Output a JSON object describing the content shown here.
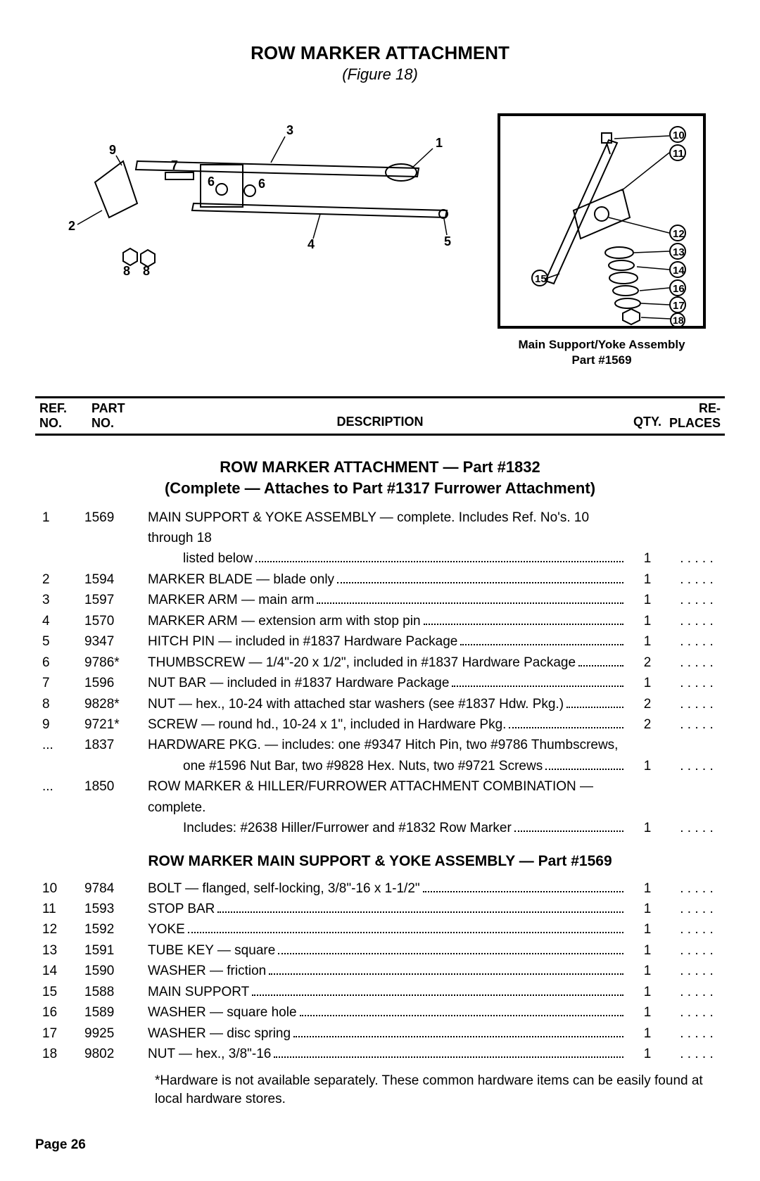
{
  "page": {
    "title": "ROW MARKER ATTACHMENT",
    "figure": "(Figure 18)",
    "left_diagram_labels": [
      "1",
      "2",
      "3",
      "4",
      "5",
      "6",
      "7",
      "8",
      "9"
    ],
    "right_diagram_labels": [
      "10",
      "11",
      "12",
      "13",
      "14",
      "15",
      "16",
      "17",
      "18"
    ],
    "right_caption_l1": "Main Support/Yoke Assembly",
    "right_caption_l2": "Part #1569",
    "table_headers": {
      "ref": "REF.\nNO.",
      "part": "PART\nNO.",
      "desc": "DESCRIPTION",
      "qty": "QTY.",
      "rep": "RE-\nPLACES"
    },
    "section1_title_l1": "ROW MARKER ATTACHMENT — Part #1832",
    "section1_title_l2": "(Complete — Attaches to Part #1317 Furrower Attachment)",
    "section2_title": "ROW MARKER MAIN SUPPORT & YOKE ASSEMBLY — Part #1569",
    "rows1": [
      {
        "ref": "1",
        "part": "1569",
        "desc": "MAIN SUPPORT & YOKE ASSEMBLY — complete. Includes Ref. No's. 10 through 18",
        "cont": "listed below",
        "qty": "1",
        "rep": ". . . . ."
      },
      {
        "ref": "2",
        "part": "1594",
        "desc": "MARKER BLADE — blade only",
        "qty": "1",
        "rep": ". . . . ."
      },
      {
        "ref": "3",
        "part": "1597",
        "desc": "MARKER ARM — main arm",
        "qty": "1",
        "rep": ". . . . ."
      },
      {
        "ref": "4",
        "part": "1570",
        "desc": "MARKER ARM — extension arm with stop pin",
        "qty": "1",
        "rep": ". . . . ."
      },
      {
        "ref": "5",
        "part": "9347",
        "desc": "HITCH PIN — included in #1837 Hardware Package",
        "qty": "1",
        "rep": ". . . . ."
      },
      {
        "ref": "6",
        "part": "9786*",
        "desc": "THUMBSCREW — 1/4\"-20 x 1/2\", included in #1837 Hardware Package",
        "qty": "2",
        "rep": ". . . . ."
      },
      {
        "ref": "7",
        "part": "1596",
        "desc": "NUT BAR — included in #1837 Hardware Package",
        "qty": "1",
        "rep": ". . . . ."
      },
      {
        "ref": "8",
        "part": "9828*",
        "desc": "NUT — hex., 10-24 with attached star washers (see #1837 Hdw. Pkg.)",
        "qty": "2",
        "rep": ". . . . ."
      },
      {
        "ref": "9",
        "part": "9721*",
        "desc": "SCREW — round hd., 10-24 x 1\", included in Hardware Pkg.",
        "qty": "2",
        "rep": ". . . . ."
      },
      {
        "ref": "...",
        "part": "1837",
        "desc": "HARDWARE PKG. — includes: one #9347 Hitch Pin, two #9786 Thumbscrews,",
        "cont": "one #1596 Nut Bar, two #9828 Hex. Nuts, two #9721 Screws",
        "qty": "1",
        "rep": ". . . . ."
      },
      {
        "ref": "...",
        "part": "1850",
        "desc": "ROW MARKER & HILLER/FURROWER ATTACHMENT COMBINATION — complete.",
        "cont": "Includes: #2638 Hiller/Furrower and #1832 Row Marker",
        "qty": "1",
        "rep": ". . . . ."
      }
    ],
    "rows2": [
      {
        "ref": "10",
        "part": "9784",
        "desc": "BOLT — flanged, self-locking, 3/8\"-16 x 1-1/2\"",
        "qty": "1",
        "rep": ". . . . ."
      },
      {
        "ref": "11",
        "part": "1593",
        "desc": "STOP BAR",
        "qty": "1",
        "rep": ". . . . ."
      },
      {
        "ref": "12",
        "part": "1592",
        "desc": "YOKE",
        "qty": "1",
        "rep": ". . . . ."
      },
      {
        "ref": "13",
        "part": "1591",
        "desc": "TUBE KEY — square",
        "qty": "1",
        "rep": ". . . . ."
      },
      {
        "ref": "14",
        "part": "1590",
        "desc": "WASHER — friction",
        "qty": "1",
        "rep": ". . . . ."
      },
      {
        "ref": "15",
        "part": "1588",
        "desc": "MAIN SUPPORT",
        "qty": "1",
        "rep": ". . . . ."
      },
      {
        "ref": "16",
        "part": "1589",
        "desc": "WASHER — square hole",
        "qty": "1",
        "rep": ". . . . ."
      },
      {
        "ref": "17",
        "part": "9925",
        "desc": "WASHER — disc spring",
        "qty": "1",
        "rep": ". . . . ."
      },
      {
        "ref": "18",
        "part": "9802",
        "desc": "NUT — hex., 3/8\"-16",
        "qty": "1",
        "rep": ". . . . ."
      }
    ],
    "footnote": "*Hardware is not available separately. These common hardware items can be easily found at local hardware stores.",
    "page_number": "Page 26"
  },
  "style": {
    "text_color": "#000000",
    "bg_color": "#ffffff",
    "fontsize_title": 26,
    "fontsize_body": 19
  }
}
